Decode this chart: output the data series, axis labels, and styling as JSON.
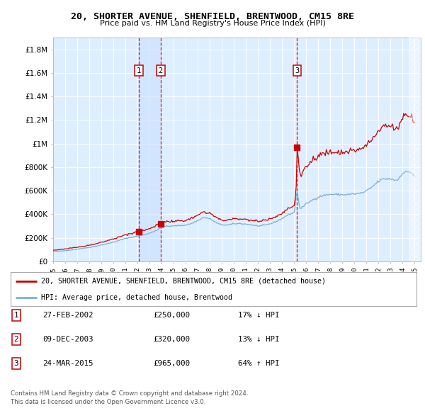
{
  "title": "20, SHORTER AVENUE, SHENFIELD, BRENTWOOD, CM15 8RE",
  "subtitle": "Price paid vs. HM Land Registry's House Price Index (HPI)",
  "ylim": [
    0,
    1900000
  ],
  "yticks": [
    0,
    200000,
    400000,
    600000,
    800000,
    1000000,
    1200000,
    1400000,
    1600000,
    1800000
  ],
  "ytick_labels": [
    "£0",
    "£200K",
    "£400K",
    "£600K",
    "£800K",
    "£1M",
    "£1.2M",
    "£1.4M",
    "£1.6M",
    "£1.8M"
  ],
  "xlim_start": 1995.0,
  "xlim_end": 2025.5,
  "sale_dates": [
    2002.12,
    2003.92,
    2015.23
  ],
  "sale_prices": [
    250000,
    320000,
    965000
  ],
  "sale_labels": [
    "1",
    "2",
    "3"
  ],
  "hpi_line_color": "#7bafd4",
  "sale_line_color": "#cc0000",
  "vline_color": "#cc0000",
  "bg_color": "#ddeeff",
  "legend_entry1": "20, SHORTER AVENUE, SHENFIELD, BRENTWOOD, CM15 8RE (detached house)",
  "legend_entry2": "HPI: Average price, detached house, Brentwood",
  "table_rows": [
    [
      "1",
      "27-FEB-2002",
      "£250,000",
      "17% ↓ HPI"
    ],
    [
      "2",
      "09-DEC-2003",
      "£320,000",
      "13% ↓ HPI"
    ],
    [
      "3",
      "24-MAR-2015",
      "£965,000",
      "64% ↑ HPI"
    ]
  ],
  "footnote1": "Contains HM Land Registry data © Crown copyright and database right 2024.",
  "footnote2": "This data is licensed under the Open Government Licence v3.0."
}
